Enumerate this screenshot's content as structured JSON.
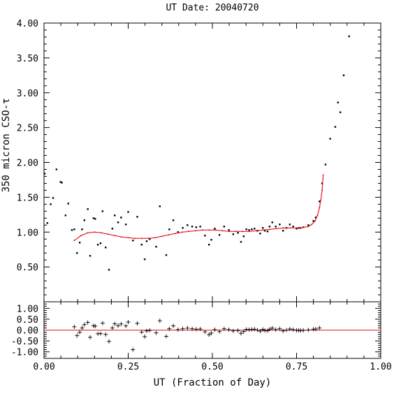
{
  "chart_data": [
    {
      "type": "scatter",
      "role": "main",
      "title": "UT Date: 20040720",
      "ylabel": "350 micron CSO-τ",
      "xlim": [
        0,
        1
      ],
      "ylim": [
        0,
        4
      ],
      "yticks": [
        "0.50",
        "1.00",
        "1.50",
        "2.00",
        "2.50",
        "3.00",
        "3.50",
        "4.00"
      ],
      "yticks_values": [
        0.5,
        1.0,
        1.5,
        2.0,
        2.5,
        3.0,
        3.5,
        4.0
      ],
      "grid": false,
      "colors": {
        "points": "#000000",
        "fit": "#e41a1c"
      },
      "series": [
        {
          "kind": "points",
          "x": [
            0.002,
            0.01,
            0.02,
            0.027,
            0.037,
            0.049,
            0.053,
            0.064,
            0.072,
            0.083,
            0.09,
            0.098,
            0.106,
            0.113,
            0.12,
            0.13,
            0.137,
            0.147,
            0.152,
            0.16,
            0.168,
            0.174,
            0.183,
            0.193,
            0.203,
            0.21,
            0.22,
            0.229,
            0.243,
            0.25,
            0.264,
            0.277,
            0.29,
            0.299,
            0.305,
            0.314,
            0.333,
            0.344,
            0.363,
            0.372,
            0.384,
            0.398,
            0.412,
            0.426,
            0.44,
            0.452,
            0.464,
            0.478,
            0.49,
            0.497,
            0.507,
            0.521,
            0.535,
            0.549,
            0.562,
            0.576,
            0.585,
            0.593,
            0.601,
            0.609,
            0.617,
            0.625,
            0.634,
            0.642,
            0.65,
            0.656,
            0.664,
            0.67,
            0.678,
            0.688,
            0.7,
            0.71,
            0.72,
            0.73,
            0.74,
            0.75,
            0.756,
            0.762,
            0.77,
            0.785,
            0.8,
            0.807,
            0.818,
            0.826,
            0.836,
            0.85,
            0.865,
            0.873,
            0.88,
            0.89,
            0.906
          ],
          "y": [
            1.84,
            1.13,
            1.4,
            1.49,
            1.9,
            1.72,
            1.71,
            1.24,
            1.41,
            1.03,
            1.04,
            0.7,
            0.85,
            1.04,
            1.17,
            1.33,
            0.66,
            1.2,
            1.19,
            0.82,
            0.84,
            1.3,
            0.78,
            0.46,
            1.05,
            1.24,
            1.14,
            1.21,
            1.11,
            1.29,
            0.88,
            1.22,
            0.82,
            0.61,
            0.87,
            0.9,
            0.79,
            1.37,
            0.67,
            1.04,
            1.17,
            1.0,
            1.06,
            1.1,
            1.08,
            1.07,
            1.08,
            0.95,
            0.82,
            0.89,
            1.05,
            0.96,
            1.08,
            1.03,
            0.97,
            0.99,
            0.86,
            0.94,
            1.04,
            1.03,
            1.04,
            1.05,
            1.02,
            0.98,
            1.06,
            1.02,
            1.01,
            1.08,
            1.14,
            1.08,
            1.11,
            1.02,
            1.06,
            1.11,
            1.08,
            1.05,
            1.06,
            1.06,
            1.07,
            1.1,
            1.16,
            1.21,
            1.44,
            1.7,
            1.97,
            2.34,
            2.51,
            2.86,
            2.72,
            3.25,
            3.81
          ]
        },
        {
          "kind": "fit",
          "x": [
            0.09,
            0.11,
            0.13,
            0.15,
            0.17,
            0.19,
            0.21,
            0.23,
            0.25,
            0.27,
            0.29,
            0.31,
            0.33,
            0.35,
            0.37,
            0.39,
            0.41,
            0.43,
            0.45,
            0.47,
            0.49,
            0.51,
            0.53,
            0.55,
            0.57,
            0.59,
            0.61,
            0.63,
            0.65,
            0.67,
            0.69,
            0.71,
            0.73,
            0.75,
            0.77,
            0.785,
            0.795,
            0.805,
            0.812,
            0.818,
            0.822,
            0.826,
            0.829
          ],
          "y": [
            0.88,
            0.95,
            0.99,
            1.0,
            0.99,
            0.97,
            0.95,
            0.93,
            0.92,
            0.91,
            0.91,
            0.91,
            0.92,
            0.94,
            0.96,
            0.98,
            1.0,
            1.01,
            1.02,
            1.03,
            1.03,
            1.03,
            1.02,
            1.01,
            1.01,
            1.01,
            1.01,
            1.02,
            1.03,
            1.04,
            1.05,
            1.06,
            1.06,
            1.06,
            1.07,
            1.08,
            1.11,
            1.16,
            1.24,
            1.35,
            1.46,
            1.6,
            1.82
          ]
        }
      ]
    },
    {
      "type": "scatter",
      "role": "residuals",
      "xlabel": "UT (Fraction of Day)",
      "xlim": [
        0,
        1
      ],
      "ylim": [
        -1.3,
        1.3
      ],
      "xticks": [
        "0.00",
        "0.25",
        "0.50",
        "0.75",
        "1.00"
      ],
      "xticks_values": [
        0,
        0.25,
        0.5,
        0.75,
        1.0
      ],
      "yticks": [
        "-1.00",
        "-0.50",
        "0.00",
        "0.50",
        "1.00"
      ],
      "yticks_values": [
        -1.0,
        -0.5,
        0.0,
        0.5,
        1.0
      ],
      "reference_line": 0,
      "series": [
        {
          "kind": "residual",
          "x": [
            0.09,
            0.098,
            0.106,
            0.113,
            0.12,
            0.13,
            0.137,
            0.147,
            0.152,
            0.16,
            0.168,
            0.174,
            0.183,
            0.193,
            0.203,
            0.21,
            0.22,
            0.229,
            0.243,
            0.25,
            0.264,
            0.277,
            0.29,
            0.299,
            0.305,
            0.314,
            0.333,
            0.344,
            0.363,
            0.372,
            0.384,
            0.398,
            0.412,
            0.426,
            0.44,
            0.452,
            0.464,
            0.478,
            0.49,
            0.497,
            0.507,
            0.521,
            0.535,
            0.549,
            0.562,
            0.576,
            0.585,
            0.593,
            0.601,
            0.609,
            0.617,
            0.625,
            0.634,
            0.642,
            0.65,
            0.656,
            0.664,
            0.67,
            0.678,
            0.688,
            0.7,
            0.71,
            0.72,
            0.73,
            0.74,
            0.75,
            0.756,
            0.762,
            0.77,
            0.785,
            0.8,
            0.807,
            0.818
          ],
          "y": [
            0.15,
            -0.25,
            -0.1,
            0.1,
            0.25,
            0.35,
            -0.33,
            0.2,
            0.18,
            -0.17,
            -0.16,
            0.32,
            -0.2,
            -0.52,
            0.1,
            0.29,
            0.2,
            0.28,
            0.19,
            0.37,
            -0.9,
            0.31,
            -0.09,
            -0.3,
            -0.04,
            -0.01,
            -0.13,
            0.43,
            -0.29,
            0.06,
            0.19,
            0.02,
            0.06,
            0.09,
            0.06,
            0.04,
            0.05,
            -0.08,
            -0.21,
            -0.14,
            0.02,
            -0.07,
            0.06,
            0.02,
            -0.04,
            -0.02,
            -0.15,
            -0.07,
            0.03,
            0.02,
            0.03,
            0.04,
            0.0,
            -0.05,
            0.03,
            -0.02,
            -0.03,
            0.04,
            0.09,
            0.02,
            0.06,
            -0.04,
            0.0,
            0.05,
            0.02,
            -0.01,
            -0.01,
            -0.02,
            -0.01,
            0.01,
            0.04,
            0.05,
            0.1
          ]
        }
      ]
    }
  ]
}
